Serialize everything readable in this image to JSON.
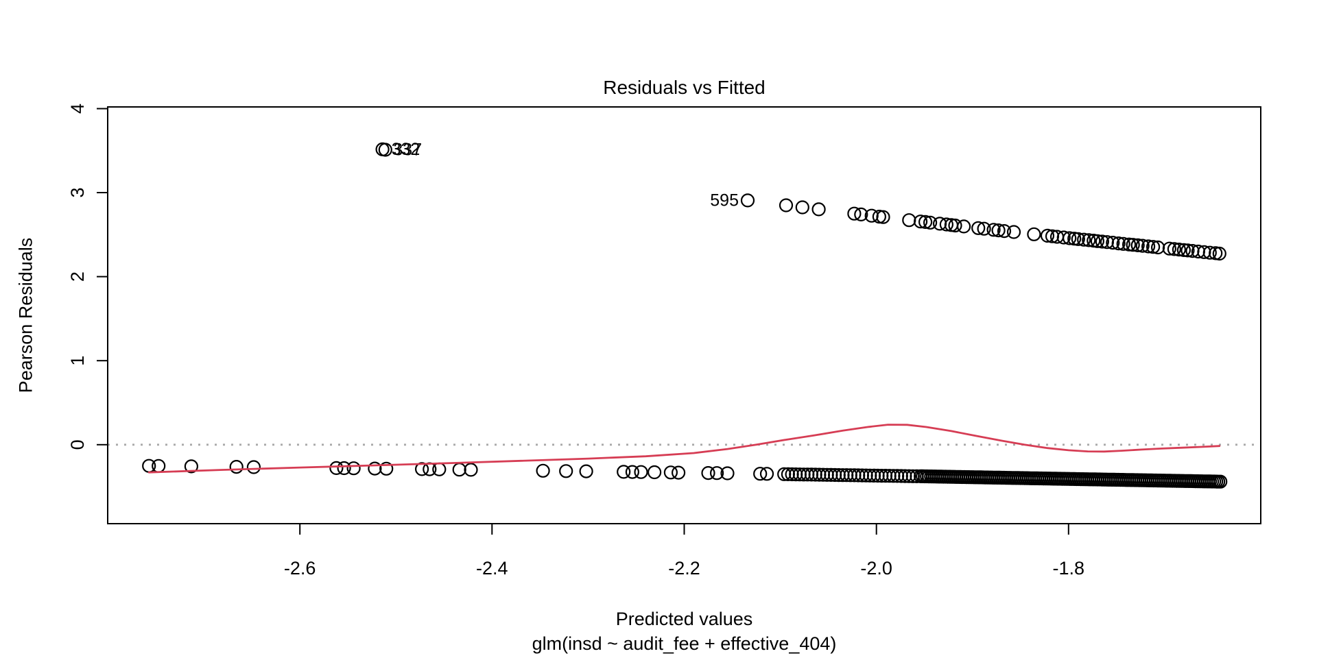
{
  "title": "Residuals vs Fitted",
  "x_axis": {
    "label": "Predicted values",
    "sub_label": "glm(insd ~ audit_fee + effective_404)",
    "ticks": [
      -2.6,
      -2.4,
      -2.2,
      -2.0,
      -1.8
    ],
    "tick_labels": [
      "-2.6",
      "-2.4",
      "-2.2",
      "-2.0",
      "-1.8"
    ]
  },
  "y_axis": {
    "label": "Pearson Residuals",
    "ticks": [
      0,
      1,
      2,
      3,
      4
    ],
    "tick_labels": [
      "0",
      "1",
      "2",
      "3",
      "4"
    ]
  },
  "colors": {
    "points": "#000000",
    "smooth_line": "#d63d54",
    "zero_line": "#a9a9a9",
    "box": "#000000",
    "text": "#000000",
    "background": "#ffffff"
  },
  "chart_data": {
    "type": "scatter",
    "title": "Residuals vs Fitted",
    "xlabel": "Predicted values",
    "ylabel": "Pearson Residuals",
    "xlim": [
      -2.8,
      -1.6
    ],
    "ylim": [
      -0.94,
      4.02
    ],
    "grid": false,
    "reference_line": {
      "y": 0,
      "style": "dotted",
      "color": "#a9a9a9"
    },
    "point_labels": [
      {
        "text": "332",
        "x": -2.514,
        "y": 3.515,
        "side": "right"
      },
      {
        "text": "337",
        "x": -2.512,
        "y": 3.51,
        "side": "right"
      },
      {
        "text": "595",
        "x": -2.134,
        "y": 2.907,
        "side": "left"
      }
    ],
    "series": [
      {
        "name": "upper-band-residuals",
        "marker": "open-circle",
        "x": [
          -2.514,
          -2.511,
          -2.134,
          -2.094,
          -2.077,
          -2.06,
          -2.023,
          -2.016,
          -2.005,
          -1.997,
          -1.993,
          -1.966,
          -1.954,
          -1.949,
          -1.944,
          -1.934,
          -1.927,
          -1.922,
          -1.918,
          -1.909,
          -1.894,
          -1.888,
          -1.878,
          -1.873,
          -1.867,
          -1.857,
          -1.836,
          -1.822,
          -1.817,
          -1.812,
          -1.805,
          -1.799,
          -1.794,
          -1.79,
          -1.784,
          -1.779,
          -1.774,
          -1.77,
          -1.765,
          -1.76,
          -1.754,
          -1.748,
          -1.743,
          -1.737,
          -1.733,
          -1.728,
          -1.723,
          -1.717,
          -1.712,
          -1.707,
          -1.695,
          -1.69,
          -1.685,
          -1.68,
          -1.676,
          -1.671,
          -1.665,
          -1.659,
          -1.653,
          -1.647,
          -1.643
        ],
        "y": [
          3.515,
          3.51,
          2.907,
          2.849,
          2.825,
          2.801,
          2.75,
          2.74,
          2.725,
          2.714,
          2.709,
          2.672,
          2.656,
          2.65,
          2.643,
          2.63,
          2.621,
          2.614,
          2.609,
          2.597,
          2.578,
          2.57,
          2.557,
          2.551,
          2.543,
          2.531,
          2.504,
          2.487,
          2.481,
          2.474,
          2.466,
          2.458,
          2.452,
          2.447,
          2.44,
          2.434,
          2.428,
          2.423,
          2.417,
          2.411,
          2.404,
          2.396,
          2.39,
          2.383,
          2.379,
          2.373,
          2.367,
          2.36,
          2.354,
          2.348,
          2.334,
          2.328,
          2.322,
          2.316,
          2.312,
          2.306,
          2.299,
          2.292,
          2.285,
          2.279,
          2.274
        ]
      },
      {
        "name": "lower-band-residuals",
        "marker": "open-circle",
        "x": [
          -2.757,
          -2.747,
          -2.713,
          -2.666,
          -2.648,
          -2.562,
          -2.554,
          -2.544,
          -2.522,
          -2.51,
          -2.473,
          -2.465,
          -2.455,
          -2.434,
          -2.422,
          -2.347,
          -2.323,
          -2.302,
          -2.263,
          -2.254,
          -2.245,
          -2.231,
          -2.214,
          -2.206,
          -2.175,
          -2.166,
          -2.155,
          -2.121,
          -2.114
        ],
        "y": [
          -0.252,
          -0.253,
          -0.258,
          -0.264,
          -0.267,
          -0.278,
          -0.279,
          -0.281,
          -0.284,
          -0.286,
          -0.291,
          -0.292,
          -0.294,
          -0.297,
          -0.299,
          -0.31,
          -0.314,
          -0.317,
          -0.323,
          -0.325,
          -0.326,
          -0.328,
          -0.331,
          -0.333,
          -0.337,
          -0.338,
          -0.34,
          -0.346,
          -0.347
        ],
        "dense_runs": [
          {
            "x_from": -2.096,
            "x_to": -1.958,
            "y_from": -0.351,
            "y_to": -0.376,
            "count": 35
          },
          {
            "x_from": -1.954,
            "x_to": -1.642,
            "y_from": -0.376,
            "y_to": -0.44,
            "count": 145
          }
        ]
      },
      {
        "name": "smooth-line",
        "type": "line",
        "color": "#d63d54",
        "points": [
          [
            -2.757,
            -0.33
          ],
          [
            -2.68,
            -0.3
          ],
          [
            -2.6,
            -0.272
          ],
          [
            -2.52,
            -0.246
          ],
          [
            -2.44,
            -0.218
          ],
          [
            -2.37,
            -0.192
          ],
          [
            -2.3,
            -0.166
          ],
          [
            -2.24,
            -0.138
          ],
          [
            -2.19,
            -0.1
          ],
          [
            -2.155,
            -0.052
          ],
          [
            -2.125,
            0.0
          ],
          [
            -2.095,
            0.058
          ],
          [
            -2.065,
            0.11
          ],
          [
            -2.035,
            0.168
          ],
          [
            -2.008,
            0.212
          ],
          [
            -1.988,
            0.238
          ],
          [
            -1.968,
            0.236
          ],
          [
            -1.948,
            0.21
          ],
          [
            -1.922,
            0.162
          ],
          [
            -1.896,
            0.104
          ],
          [
            -1.87,
            0.048
          ],
          [
            -1.846,
            0.0
          ],
          [
            -1.822,
            -0.04
          ],
          [
            -1.8,
            -0.066
          ],
          [
            -1.78,
            -0.08
          ],
          [
            -1.763,
            -0.082
          ],
          [
            -1.745,
            -0.072
          ],
          [
            -1.724,
            -0.058
          ],
          [
            -1.703,
            -0.046
          ],
          [
            -1.682,
            -0.036
          ],
          [
            -1.662,
            -0.026
          ],
          [
            -1.643,
            -0.016
          ]
        ]
      }
    ]
  }
}
